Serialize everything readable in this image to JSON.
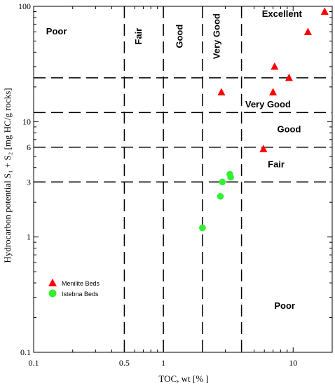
{
  "chart_data": {
    "type": "scatter",
    "xscale": "log",
    "yscale": "log",
    "xlim": [
      0.1,
      20
    ],
    "ylim": [
      0.1,
      100
    ],
    "xlabel": "TOC, wt [% ]",
    "ylabel": "Hydrocarbon  potential S₁ + S₂ [mg HC/g rocks]",
    "x_ticks": [
      "0.1",
      "0.5",
      "1",
      "10"
    ],
    "y_ticks": [
      "0.1",
      "1",
      "3",
      "6",
      "10",
      "100"
    ],
    "grid": false,
    "colors": {
      "menilite": "#ff0000",
      "istebna": "#33ee33"
    },
    "boundaries": {
      "x": [
        0.5,
        1.0,
        2.0,
        4.0
      ],
      "y": [
        3,
        6,
        12,
        24
      ]
    },
    "zones": [
      {
        "label": "Poor",
        "x": 0.15,
        "y": 60,
        "rotated": false
      },
      {
        "label": "Fair",
        "x": 0.65,
        "y": 55,
        "rotated": true
      },
      {
        "label": "Good",
        "x": 1.35,
        "y": 55,
        "rotated": true
      },
      {
        "label": "Very Good",
        "x": 2.6,
        "y": 55,
        "rotated": true
      },
      {
        "label": "Excellent",
        "x": 8.2,
        "y": 85,
        "rotated": false
      },
      {
        "label": "Very Good",
        "x": 6.4,
        "y": 14,
        "rotated": false
      },
      {
        "label": "Good",
        "x": 9.3,
        "y": 8.5,
        "rotated": false
      },
      {
        "label": "Fair",
        "x": 7.4,
        "y": 4.2,
        "rotated": false
      },
      {
        "label": "Poor",
        "x": 8.6,
        "y": 0.25,
        "rotated": false
      }
    ],
    "series": [
      {
        "name": "Menilite Beds",
        "marker": "triangle",
        "color": "#ff0000",
        "points": [
          {
            "x": 17.5,
            "y": 90
          },
          {
            "x": 13.0,
            "y": 60
          },
          {
            "x": 7.2,
            "y": 30
          },
          {
            "x": 9.3,
            "y": 24
          },
          {
            "x": 7.0,
            "y": 18
          },
          {
            "x": 2.8,
            "y": 18
          },
          {
            "x": 5.9,
            "y": 5.8
          }
        ]
      },
      {
        "name": "Istebna Beds",
        "marker": "circle",
        "color": "#33ee33",
        "points": [
          {
            "x": 3.25,
            "y": 3.5
          },
          {
            "x": 3.3,
            "y": 3.3
          },
          {
            "x": 2.85,
            "y": 3.0
          },
          {
            "x": 2.75,
            "y": 2.25
          },
          {
            "x": 2.0,
            "y": 1.2
          }
        ]
      }
    ]
  }
}
